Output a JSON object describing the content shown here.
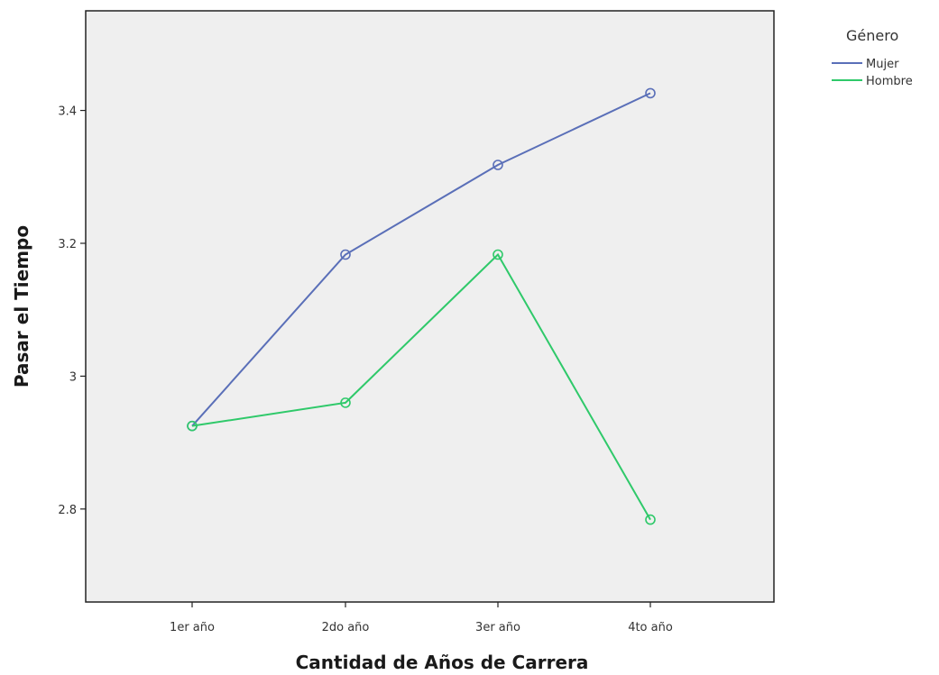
{
  "chart_data": {
    "type": "line",
    "title": "",
    "xlabel": "Cantidad de Años de Carrera",
    "ylabel": "Pasar el Tiempo",
    "categories": [
      "1er año",
      "2do año",
      "3er año",
      "4to año"
    ],
    "ylim": [
      2.66,
      3.55
    ],
    "yticks": [
      2.8,
      3,
      3.2,
      3.4
    ],
    "ytick_labels": [
      "2.8",
      "3",
      "3.2",
      "3.4"
    ],
    "grid": false,
    "legend": {
      "title": "Género",
      "position": "top-right"
    },
    "series": [
      {
        "name": "Mujer",
        "color": "#5a6fb8",
        "values": [
          2.925,
          3.183,
          3.318,
          3.426
        ]
      },
      {
        "name": "Hombre",
        "color": "#2fc96a",
        "values": [
          2.925,
          2.96,
          3.183,
          2.784
        ]
      }
    ],
    "colors": {
      "plot_background": "#efefef",
      "frame": "#222222"
    }
  }
}
